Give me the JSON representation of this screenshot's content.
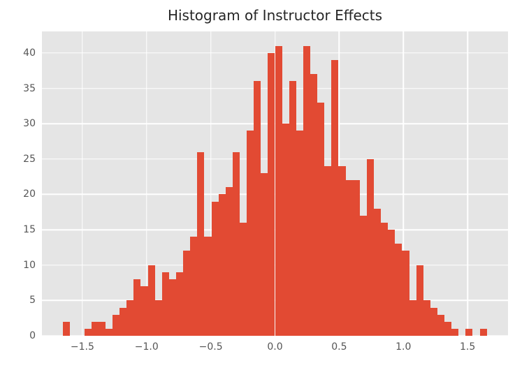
{
  "title": "Histogram of Instructor Effects",
  "chart_data": {
    "type": "bar",
    "subtype": "histogram",
    "title": "Histogram of Instructor Effects",
    "xlabel": "",
    "ylabel": "",
    "bin_start": -1.65,
    "bin_width": 0.055,
    "counts": [
      2,
      0,
      0,
      1,
      2,
      2,
      1,
      3,
      4,
      5,
      8,
      7,
      10,
      5,
      9,
      8,
      9,
      12,
      14,
      26,
      14,
      19,
      20,
      21,
      26,
      16,
      29,
      36,
      23,
      40,
      41,
      30,
      36,
      29,
      41,
      37,
      33,
      24,
      39,
      24,
      22,
      22,
      17,
      25,
      18,
      16,
      15,
      13,
      12,
      5,
      10,
      5,
      4,
      3,
      2,
      1,
      0,
      1,
      0,
      1
    ],
    "xlim": [
      -1.815,
      1.815
    ],
    "ylim": [
      0,
      43.05
    ],
    "x_ticks": [
      -1.5,
      -1.0,
      -0.5,
      0.0,
      0.5,
      1.0,
      1.5
    ],
    "x_tick_labels": [
      "−1.5",
      "−1.0",
      "−0.5",
      "0.0",
      "0.5",
      "1.0",
      "1.5"
    ],
    "y_ticks": [
      0,
      5,
      10,
      15,
      20,
      25,
      30,
      35,
      40
    ],
    "y_tick_labels": [
      "0",
      "5",
      "10",
      "15",
      "20",
      "25",
      "30",
      "35",
      "40"
    ],
    "grid": "on",
    "bar_color": "#E24A33",
    "plot_bg_color": "#E5E5E5",
    "grid_color": "#FFFFFF",
    "tick_label_color": "#555555",
    "title_color": "#262626"
  }
}
